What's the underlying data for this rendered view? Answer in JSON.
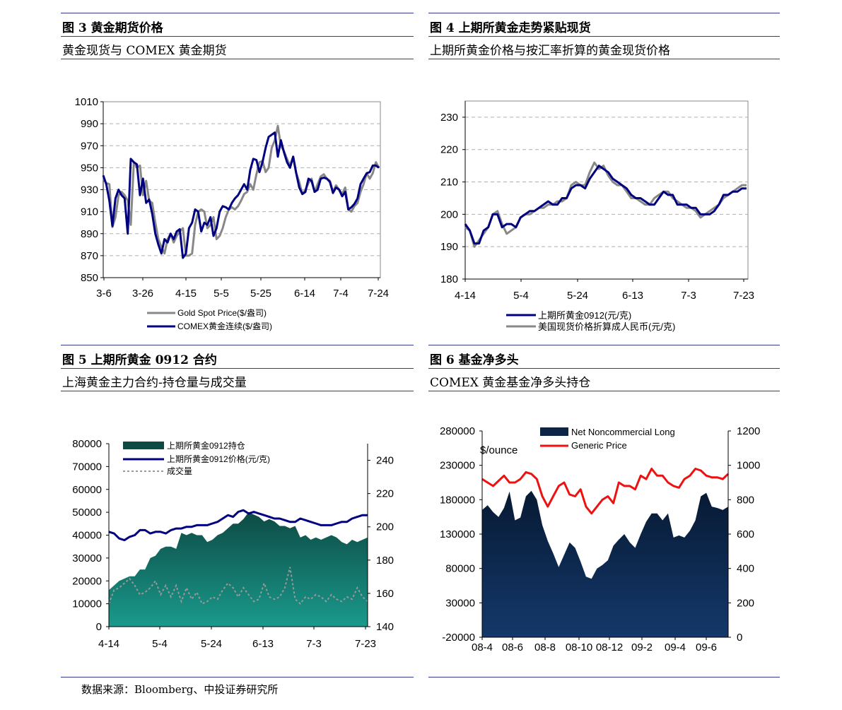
{
  "figures": [
    {
      "title": "图 3  黄金期货价格",
      "subtitle": "黄金现货与 COMEX 黄金期货"
    },
    {
      "title": "图 4  上期所黄金走势紧贴现货",
      "subtitle": "上期所黄金价格与按汇率折算的黄金现货价格"
    },
    {
      "title": "图 5  上期所黄金 0912 合约",
      "subtitle": "上海黄金主力合约-持仓量与成交量"
    },
    {
      "title": "图 6  基金净多头",
      "subtitle": "COMEX 黄金基金净多头持仓"
    }
  ],
  "source": "数据来源：Bloomberg、中投证券研究所",
  "colors": {
    "navy": "#000080",
    "gray": "#888888",
    "teal_dark": "#0d4a44",
    "teal_light": "#1a9a8c",
    "red": "#ee1111",
    "rule": "#3a3a8a"
  },
  "chart_data": [
    {
      "type": "line",
      "ylim": [
        850,
        1010
      ],
      "yticks": [
        "1010",
        "990",
        "970",
        "950",
        "930",
        "910",
        "890",
        "870",
        "850"
      ],
      "xticks": [
        "3-6",
        "3-26",
        "4-15",
        "5-5",
        "5-25",
        "6-14",
        "7-4",
        "7-24"
      ],
      "legend": [
        "Gold Spot Price($/盎司)",
        "COMEX黄金连续($/盎司)"
      ],
      "series": [
        {
          "name": "Gold Spot Price($/盎司)",
          "color": "#888888",
          "values": [
            940,
            936,
            935,
            896,
            905,
            925,
            928,
            925,
            920,
            898,
            955,
            950,
            952,
            925,
            938,
            920,
            918,
            900,
            885,
            878,
            872,
            885,
            890,
            882,
            888,
            892,
            895,
            870,
            870,
            872,
            898,
            910,
            912,
            910,
            895,
            898,
            905,
            885,
            888,
            895,
            905,
            912,
            914,
            912,
            915,
            920,
            926,
            928,
            935,
            930,
            944,
            955,
            956,
            946,
            950,
            968,
            975,
            988,
            970,
            965,
            958,
            952,
            960,
            945,
            937,
            926,
            930,
            936,
            940,
            928,
            935,
            942,
            944,
            940,
            938,
            928,
            934,
            930,
            926,
            932,
            912,
            910,
            915,
            918,
            928,
            935,
            945,
            940,
            945,
            955,
            950
          ]
        },
        {
          "name": "COMEX黄金连续($/盎司)",
          "color": "#000080",
          "values": [
            943,
            935,
            920,
            897,
            922,
            930,
            925,
            922,
            890,
            958,
            955,
            953,
            925,
            940,
            918,
            921,
            908,
            890,
            880,
            872,
            885,
            882,
            890,
            885,
            892,
            894,
            868,
            872,
            895,
            900,
            912,
            910,
            892,
            900,
            898,
            905,
            888,
            895,
            910,
            915,
            914,
            912,
            918,
            922,
            925,
            930,
            935,
            930,
            948,
            958,
            957,
            946,
            955,
            968,
            978,
            980,
            982,
            960,
            975,
            964,
            955,
            950,
            960,
            945,
            932,
            926,
            928,
            940,
            938,
            928,
            930,
            940,
            941,
            940,
            937,
            927,
            932,
            930,
            924,
            928,
            912,
            914,
            917,
            922,
            935,
            940,
            945,
            946,
            952,
            952,
            950
          ]
        }
      ]
    },
    {
      "type": "line",
      "ylim": [
        180,
        235
      ],
      "yticks": [
        "230",
        "220",
        "210",
        "200",
        "190",
        "180"
      ],
      "xticks": [
        "4-14",
        "5-4",
        "5-24",
        "6-13",
        "7-3",
        "7-23"
      ],
      "legend": [
        "上期所黄金0912(元/克)",
        "美国现货价格折算成人民币(元/克)"
      ],
      "series": [
        {
          "name": "上期所黄金0912(元/克)",
          "color": "#000080",
          "values": [
            197,
            195,
            191,
            191,
            195,
            196,
            200,
            200,
            196,
            197,
            197,
            196,
            199,
            200,
            201,
            201,
            202,
            203,
            204,
            203,
            203,
            205,
            205,
            208,
            209,
            209,
            208,
            211,
            213,
            215,
            214,
            213,
            211,
            210,
            209,
            208,
            206,
            205,
            205,
            204,
            203,
            203,
            205,
            207,
            206,
            206,
            203,
            203,
            203,
            202,
            202,
            200,
            200,
            200,
            201,
            203,
            206,
            206,
            207,
            207,
            208,
            208
          ]
        },
        {
          "name": "美国现货价格折算成人民币(元/克)",
          "color": "#888888",
          "values": [
            196,
            195,
            190,
            192,
            194,
            196,
            200,
            201,
            197,
            194,
            195,
            196,
            199,
            200,
            200,
            201,
            202,
            202,
            203,
            203,
            204,
            204,
            205,
            209,
            210,
            209,
            209,
            213,
            216,
            214,
            215,
            212,
            210,
            209,
            209,
            207,
            205,
            205,
            204,
            203,
            203,
            205,
            206,
            207,
            207,
            205,
            204,
            203,
            202,
            202,
            201,
            199,
            200,
            201,
            202,
            203,
            205,
            206,
            207,
            208,
            209,
            209
          ]
        }
      ]
    },
    {
      "type": "area",
      "y_left_lim": [
        0,
        80000
      ],
      "y_left_ticks": [
        "80000",
        "70000",
        "60000",
        "50000",
        "40000",
        "30000",
        "20000",
        "10000",
        "0"
      ],
      "y_right_lim": [
        140,
        250
      ],
      "y_right_ticks": [
        "240",
        "220",
        "200",
        "180",
        "160",
        "140"
      ],
      "xticks": [
        "4-14",
        "5-4",
        "5-24",
        "6-13",
        "7-3",
        "7-23"
      ],
      "legend": [
        "上期所黄金0912持仓",
        "上期所黄金0912价格(元/克)",
        "成交量"
      ],
      "series": [
        {
          "name": "上期所黄金0912持仓",
          "axis": "left",
          "values": [
            16000,
            18000,
            20000,
            21000,
            22000,
            22000,
            25000,
            25000,
            30000,
            31000,
            34000,
            35000,
            35000,
            34000,
            41000,
            40000,
            41000,
            40000,
            40000,
            37000,
            38000,
            40000,
            41000,
            43000,
            45000,
            45000,
            47000,
            50000,
            49000,
            48000,
            46000,
            47000,
            46000,
            44000,
            44000,
            43000,
            44000,
            39000,
            40000,
            38000,
            39000,
            38000,
            39000,
            40000,
            39000,
            37000,
            36000,
            38000,
            37000,
            38000,
            39000
          ]
        },
        {
          "name": "上期所黄金0912价格(元/克)",
          "axis": "right",
          "values": [
            197,
            196,
            193,
            192,
            194,
            195,
            198,
            198,
            196,
            197,
            197,
            196,
            198,
            199,
            199,
            200,
            200,
            201,
            201,
            201,
            202,
            203,
            205,
            207,
            206,
            209,
            210,
            208,
            209,
            208,
            207,
            206,
            205,
            205,
            204,
            203,
            203,
            205,
            204,
            203,
            202,
            201,
            201,
            201,
            202,
            203,
            203,
            205,
            206,
            207,
            207
          ]
        },
        {
          "name": "成交量",
          "axis": "left",
          "values": [
            10000,
            16000,
            17000,
            19000,
            21000,
            18000,
            14000,
            15000,
            17000,
            20000,
            14000,
            18000,
            13000,
            18000,
            11000,
            17000,
            12000,
            15000,
            10000,
            11000,
            13000,
            12000,
            16000,
            19000,
            17000,
            13000,
            17000,
            14000,
            11000,
            12000,
            19000,
            13000,
            12000,
            13000,
            17000,
            26000,
            12000,
            10000,
            13000,
            12000,
            14000,
            13000,
            11000,
            14000,
            12000,
            11000,
            13000,
            12000,
            17000,
            13000,
            11000
          ]
        }
      ]
    },
    {
      "type": "area",
      "y_left_lim": [
        -20000,
        280000
      ],
      "y_left_ticks": [
        "280000",
        "230000",
        "180000",
        "130000",
        "80000",
        "30000",
        "-20000"
      ],
      "y_right_lim": [
        0,
        1200
      ],
      "y_right_ticks": [
        "1200",
        "1000",
        "800",
        "600",
        "400",
        "200",
        "0"
      ],
      "xticks": [
        "08-4",
        "08-6",
        "08-8",
        "08-10",
        "08-12",
        "09-2",
        "09-4",
        "09-6"
      ],
      "ylabel": "$/ounce",
      "legend": [
        "Net Noncommercial Long",
        "Generic Price"
      ],
      "series": [
        {
          "name": "Net Noncommercial Long",
          "axis": "left",
          "values": [
            165000,
            172000,
            162000,
            155000,
            168000,
            192000,
            150000,
            154000,
            185000,
            193000,
            180000,
            143000,
            120000,
            102000,
            82000,
            100000,
            118000,
            110000,
            90000,
            68000,
            65000,
            80000,
            85000,
            92000,
            113000,
            122000,
            130000,
            118000,
            110000,
            130000,
            148000,
            160000,
            160000,
            150000,
            160000,
            125000,
            128000,
            125000,
            135000,
            150000,
            185000,
            190000,
            170000,
            168000,
            165000,
            170000
          ]
        },
        {
          "name": "Generic Price",
          "axis": "right",
          "values": [
            920,
            900,
            880,
            910,
            940,
            900,
            900,
            920,
            960,
            950,
            920,
            820,
            760,
            820,
            880,
            900,
            830,
            820,
            860,
            760,
            720,
            760,
            800,
            820,
            780,
            900,
            880,
            880,
            860,
            940,
            920,
            980,
            940,
            940,
            900,
            880,
            870,
            920,
            940,
            980,
            970,
            940,
            930,
            930,
            920,
            950
          ]
        }
      ]
    }
  ]
}
